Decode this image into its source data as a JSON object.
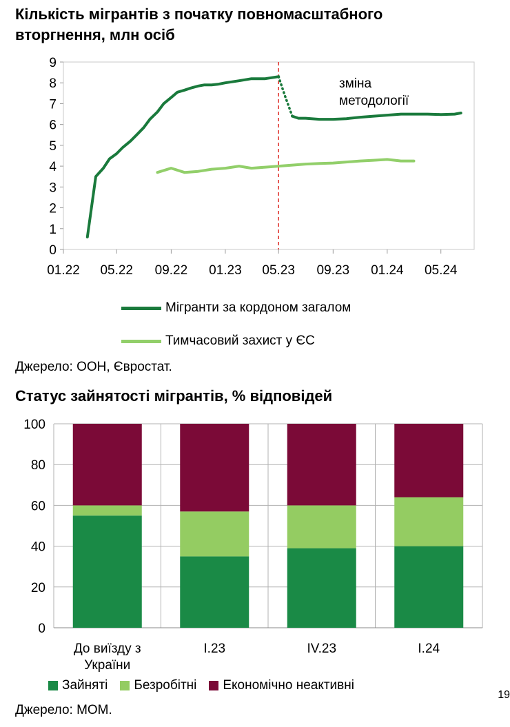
{
  "chart1": {
    "title_line1": "Кількість мігрантів з початку повномасштабного",
    "title_line2": "вторгнення, млн осіб",
    "annotation_line1": "зміна",
    "annotation_line2": "методології",
    "source": "Джерело: ООН, Євростат.",
    "colors": {
      "dark": "#1a7a3c",
      "light": "#92cf6a",
      "vline": "#e0302a"
    },
    "chart_data": {
      "type": "line",
      "xlabel": "",
      "ylabel": "",
      "ylim": [
        0,
        9
      ],
      "x_ticks": [
        "01.22",
        "05.22",
        "09.22",
        "01.23",
        "05.23",
        "09.23",
        "01.24",
        "05.24"
      ],
      "vertical_line_at": "05.23",
      "series": [
        {
          "name": "Мігранти за кордоном загалом",
          "x": [
            "2022-02-24",
            "2022-03-15",
            "2022-04-01",
            "2022-04-15",
            "2022-05-01",
            "2022-05-15",
            "2022-06-01",
            "2022-06-15",
            "2022-07-01",
            "2022-07-15",
            "2022-08-01",
            "2022-08-15",
            "2022-09-01",
            "2022-09-15",
            "2022-10-01",
            "2022-10-15",
            "2022-11-01",
            "2022-11-15",
            "2022-12-01",
            "2022-12-15",
            "2023-01-01",
            "2023-02-01",
            "2023-03-01",
            "2023-04-01",
            "2023-05-01",
            "2023-05-15",
            "2023-06-01",
            "2023-06-15",
            "2023-07-01",
            "2023-08-01",
            "2023-09-01",
            "2023-10-01",
            "2023-11-01",
            "2023-12-01",
            "2024-01-01",
            "2024-02-01",
            "2024-03-01",
            "2024-04-01",
            "2024-05-01",
            "2024-06-01",
            "2024-06-15"
          ],
          "values": [
            0.6,
            3.5,
            3.9,
            4.35,
            4.6,
            4.9,
            5.2,
            5.5,
            5.85,
            6.25,
            6.6,
            7.0,
            7.3,
            7.55,
            7.65,
            7.75,
            7.85,
            7.9,
            7.9,
            7.93,
            8.0,
            8.1,
            8.2,
            8.2,
            8.3,
            7.4,
            6.4,
            6.3,
            6.3,
            6.25,
            6.25,
            6.28,
            6.35,
            6.4,
            6.45,
            6.5,
            6.5,
            6.5,
            6.48,
            6.5,
            6.55
          ],
          "dotted_from": "2023-05-01",
          "dotted_to": "2023-06-01"
        },
        {
          "name": "Тимчасовий захист у ЄС",
          "x": [
            "2022-08-01",
            "2022-09-01",
            "2022-10-01",
            "2022-11-01",
            "2022-12-01",
            "2023-01-01",
            "2023-02-01",
            "2023-03-01",
            "2023-04-01",
            "2023-05-01",
            "2023-06-01",
            "2023-07-01",
            "2023-08-01",
            "2023-09-01",
            "2023-10-01",
            "2023-11-01",
            "2023-12-01",
            "2024-01-01",
            "2024-02-01",
            "2024-03-01"
          ],
          "values": [
            3.7,
            3.9,
            3.7,
            3.75,
            3.85,
            3.9,
            4.0,
            3.9,
            3.95,
            4.0,
            4.05,
            4.1,
            4.13,
            4.15,
            4.2,
            4.25,
            4.28,
            4.32,
            4.25,
            4.25
          ]
        }
      ]
    }
  },
  "chart2": {
    "title": "Статус зайнятості мігрантів, % відповідей",
    "source": "Джерело: МОМ.",
    "colors": {
      "employed": "#1a8a46",
      "unemployed": "#94cc62",
      "inactive": "#7b0a37",
      "grid": "#b0b0b0"
    },
    "chart_data": {
      "type": "bar",
      "stacked": true,
      "categories": [
        "До виїзду з України",
        "I.23",
        "IV.23",
        "I.24"
      ],
      "category_lines": [
        [
          "До виїзду з",
          "України"
        ],
        [
          "I.23"
        ],
        [
          "IV.23"
        ],
        [
          "I.24"
        ]
      ],
      "ylim": [
        0,
        100
      ],
      "y_ticks": [
        0,
        20,
        40,
        60,
        80,
        100
      ],
      "series": [
        {
          "name": "Зайняті",
          "values": [
            55,
            35,
            39,
            40
          ]
        },
        {
          "name": "Безробітні",
          "values": [
            5,
            22,
            21,
            24
          ]
        },
        {
          "name": "Економічно неактивні",
          "values": [
            40,
            43,
            40,
            36
          ]
        }
      ]
    }
  },
  "page_number": "19"
}
